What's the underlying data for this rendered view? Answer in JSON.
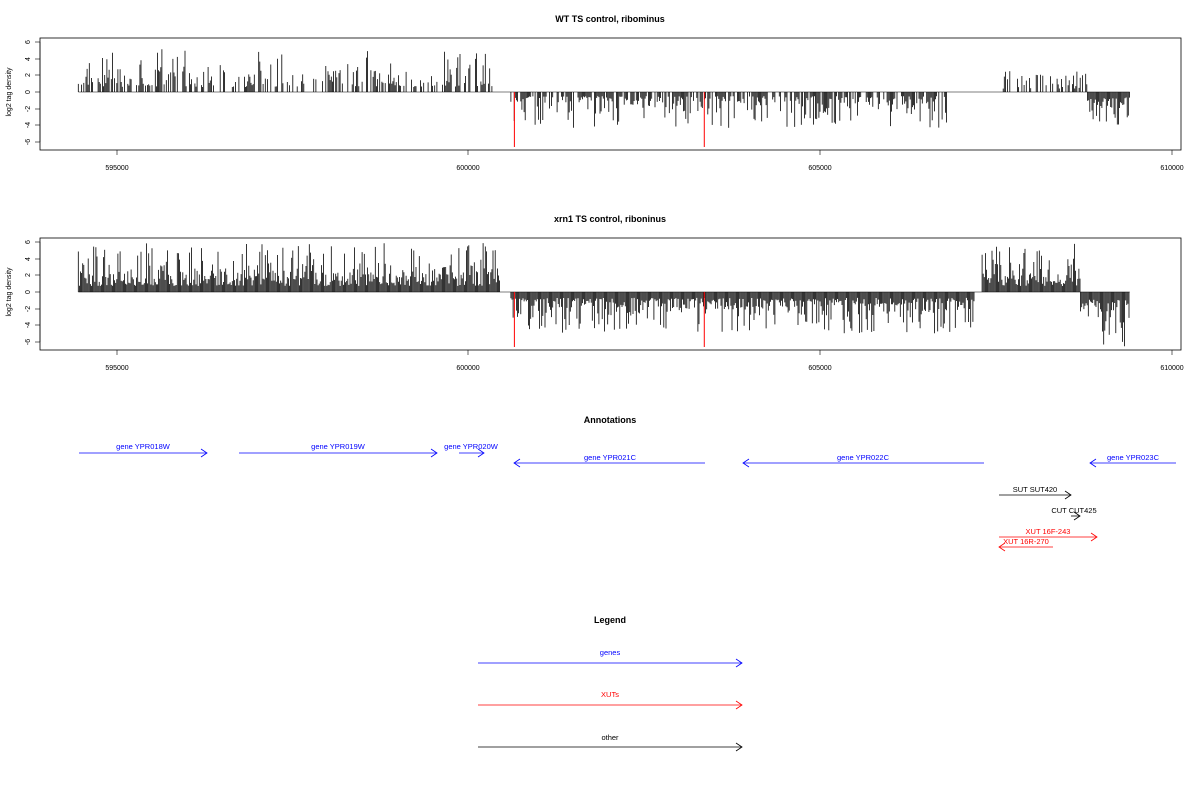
{
  "panels": [
    {
      "title": "WT TS control, ribominus",
      "ylabel": "log2 tag density",
      "xticks": [
        "595000",
        "600000",
        "605000",
        "610000"
      ],
      "yticks": [
        "6",
        "4",
        "2",
        "0",
        "-2",
        "-4",
        "-6"
      ]
    },
    {
      "title": "xrn1 TS control, riboninus",
      "ylabel": "log2 tag density",
      "xticks": [
        "595000",
        "600000",
        "605000",
        "610000"
      ],
      "yticks": [
        "6",
        "4",
        "2",
        "0",
        "-2",
        "-4",
        "-6"
      ]
    }
  ],
  "annotations_title": "Annotations",
  "legend": {
    "title": "Legend",
    "items": [
      {
        "label": "genes",
        "color": "#0000ff"
      },
      {
        "label": "XUTs",
        "color": "#ff0000"
      },
      {
        "label": "other",
        "color": "#000000"
      }
    ]
  },
  "chart_data": [
    {
      "type": "bar",
      "title": "WT TS control, ribominus",
      "xlabel": "",
      "ylabel": "log2 tag density",
      "xlim": [
        594300,
        610100
      ],
      "ylim": [
        -6.5,
        6.3
      ],
      "xticks": [
        595000,
        600000,
        605000,
        610000
      ],
      "yticks": [
        -6,
        -4,
        -2,
        0,
        2,
        4,
        6
      ],
      "series": [
        {
          "strand": "plus",
          "color": "#000000",
          "range": [
            594450,
            600350
          ],
          "density": 0.55,
          "amp": 2.4,
          "max": 5.2,
          "seed": 11
        },
        {
          "strand": "minus",
          "color": "#000000",
          "range": [
            600600,
            606800
          ],
          "density": 0.7,
          "amp": 2.0,
          "max": 4.3,
          "seed": 23
        },
        {
          "strand": "plus",
          "color": "#000000",
          "range": [
            607600,
            608800
          ],
          "density": 0.35,
          "amp": 1.6,
          "max": 2.5,
          "seed": 31
        },
        {
          "strand": "minus",
          "color": "#000000",
          "range": [
            608800,
            609400
          ],
          "density": 1.0,
          "amp": 2.6,
          "max": 3.9,
          "seed": 37
        }
      ],
      "highlights": [
        {
          "x": 600650,
          "y": -6.6,
          "color": "#ff0000"
        },
        {
          "x": 603350,
          "y": -6.6,
          "color": "#ff0000"
        }
      ]
    },
    {
      "type": "bar",
      "title": "xrn1 TS control, riboninus",
      "xlabel": "",
      "ylabel": "log2 tag density",
      "xlim": [
        594300,
        610100
      ],
      "ylim": [
        -6.5,
        6.3
      ],
      "xticks": [
        595000,
        600000,
        605000,
        610000
      ],
      "yticks": [
        -6,
        -4,
        -2,
        0,
        2,
        4,
        6
      ],
      "series": [
        {
          "strand": "plus",
          "color": "#000000",
          "range": [
            594450,
            600450
          ],
          "density": 1.0,
          "amp": 2.9,
          "max": 5.9,
          "seed": 41
        },
        {
          "strand": "minus",
          "color": "#000000",
          "range": [
            600600,
            607200
          ],
          "density": 1.0,
          "amp": 2.8,
          "max": 5.0,
          "seed": 53
        },
        {
          "strand": "plus",
          "color": "#000000",
          "range": [
            607300,
            608700
          ],
          "density": 1.0,
          "amp": 2.8,
          "max": 5.9,
          "seed": 61
        },
        {
          "strand": "minus",
          "color": "#000000",
          "range": [
            608700,
            609400
          ],
          "density": 1.0,
          "amp": 3.6,
          "max": 6.6,
          "seed": 67
        }
      ],
      "highlights": [
        {
          "x": 600650,
          "y": -6.6,
          "color": "#ff0000"
        },
        {
          "x": 603350,
          "y": -6.6,
          "color": "#ff0000"
        }
      ]
    },
    {
      "type": "annotation-track",
      "title": "Annotations",
      "features": [
        {
          "label": "gene YPR018W",
          "start": 594450,
          "end": 596300,
          "strand": "+",
          "color": "#0000ff"
        },
        {
          "label": "gene YPR019W",
          "start": 596700,
          "end": 599960,
          "strand": "+",
          "color": "#0000ff"
        },
        {
          "label": "gene YPR020W",
          "start": 599890,
          "end": 600250,
          "strand": "+",
          "color": "#0000ff"
        },
        {
          "label": "gene YPR021C",
          "start": 600650,
          "end": 603360,
          "strand": "-",
          "color": "#0000ff"
        },
        {
          "label": "gene YPR022C",
          "start": 603900,
          "end": 607300,
          "strand": "-",
          "color": "#0000ff"
        },
        {
          "label": "gene YPR023C",
          "start": 608750,
          "end": 609600,
          "strand": "-",
          "color": "#0000ff"
        },
        {
          "label": "SUT SUT420",
          "start": 607330,
          "end": 608350,
          "strand": "+",
          "color": "#000000"
        },
        {
          "label": "CUT CUT425",
          "start": 608350,
          "end": 608510,
          "strand": "+",
          "color": "#000000"
        },
        {
          "label": "XUT 16F-243",
          "start": 607330,
          "end": 608720,
          "strand": "+",
          "color": "#ff0000"
        },
        {
          "label": "XUT 16R-270",
          "start": 607330,
          "end": 608100,
          "strand": "-",
          "color": "#ff0000"
        }
      ]
    }
  ]
}
